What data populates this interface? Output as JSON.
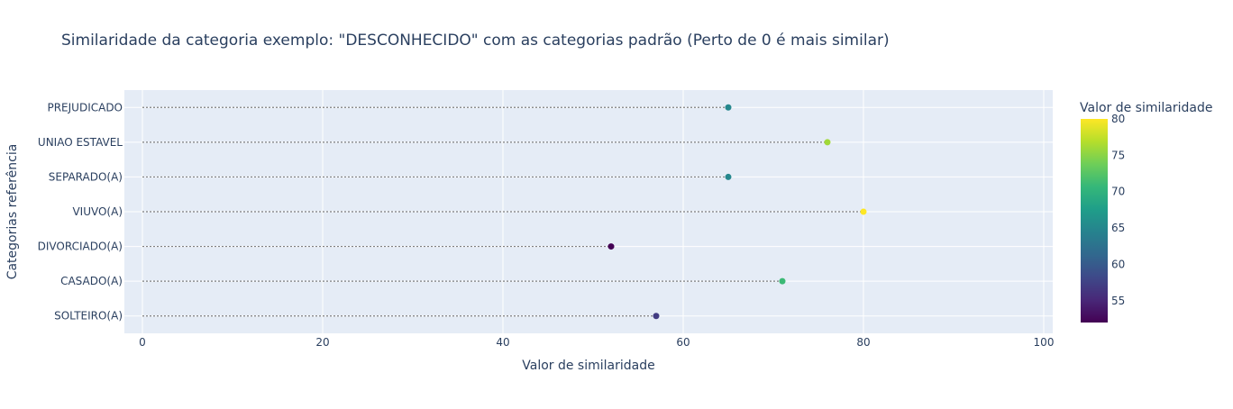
{
  "chart_data": {
    "type": "scatter",
    "title": "Similaridade da categoria exemplo: \"DESCONHECIDO\" com as categorias padrão (Perto de 0 é mais similar)",
    "xlabel": "Valor de similaridade",
    "ylabel": "Categorias referência",
    "xlim": [
      -2,
      101
    ],
    "x_ticks": [
      0,
      20,
      40,
      60,
      80,
      100
    ],
    "categories": [
      "SOLTEIRO(A)",
      "CASADO(A)",
      "DIVORCIADO(A)",
      "VIUVO(A)",
      "SEPARADO(A)",
      "UNIAO ESTAVEL",
      "PREJUDICADO"
    ],
    "values": [
      57,
      71,
      52,
      80,
      65,
      76,
      65
    ],
    "grid": true,
    "stems": "dotted",
    "colorscale": "Viridis",
    "colorbar": {
      "title": "Valor de similaridade",
      "range": [
        52,
        80
      ],
      "ticks": [
        55,
        60,
        65,
        70,
        75,
        80
      ]
    },
    "colors": {
      "plot_bg": "#e5ecf6",
      "grid": "#ffffff",
      "text": "#2a3f5f",
      "stem": "#808080"
    }
  }
}
